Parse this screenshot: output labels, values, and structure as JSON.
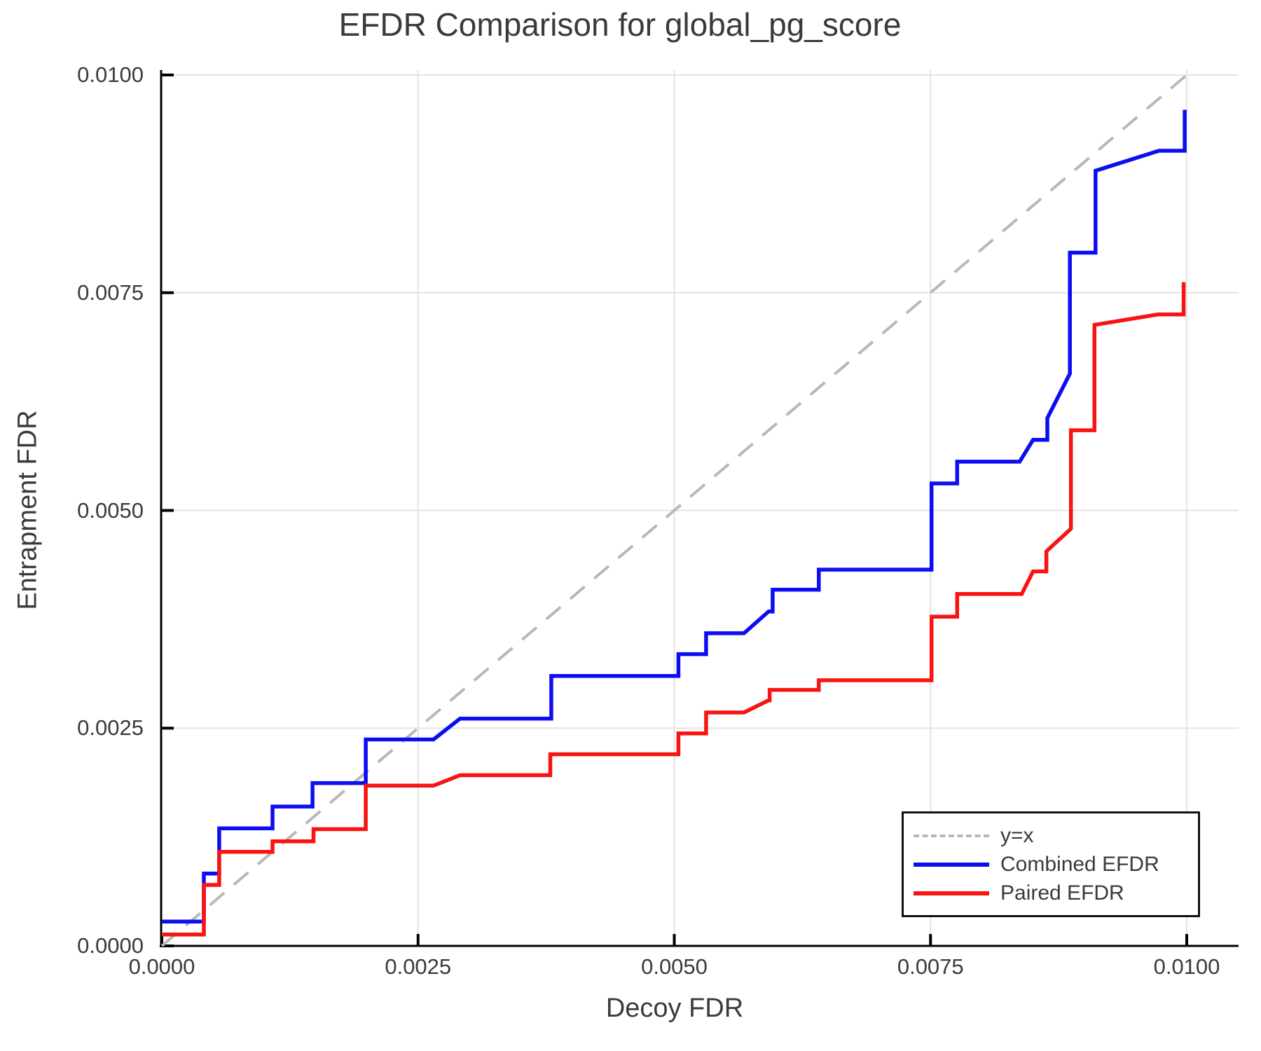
{
  "title": "EFDR Comparison for global_pg_score",
  "axes": {
    "xlabel": "Decoy FDR",
    "ylabel": "Entrapment FDR",
    "xtick_labels": [
      "0.0000",
      "0.0025",
      "0.0050",
      "0.0075",
      "0.0100"
    ],
    "ytick_labels": [
      "0.0000",
      "0.0025",
      "0.0050",
      "0.0075",
      "0.0100"
    ],
    "xtick_values": [
      0,
      0.0025,
      0.005,
      0.0075,
      0.01
    ],
    "ytick_values": [
      0,
      0.0025,
      0.005,
      0.0075,
      0.01
    ]
  },
  "legend": {
    "items": [
      {
        "label": "y=x",
        "color": "#b8b8b8",
        "style": "dashed"
      },
      {
        "label": "Combined EFDR",
        "color": "#0d0df2",
        "style": "solid"
      },
      {
        "label": "Paired EFDR",
        "color": "#f81412",
        "style": "solid"
      }
    ],
    "position": "lower right"
  },
  "chart_data": {
    "type": "line",
    "title": "EFDR Comparison for global_pg_score",
    "xlabel": "Decoy FDR",
    "ylabel": "Entrapment FDR",
    "xlim": [
      0,
      0.0105
    ],
    "ylim": [
      0,
      0.01006
    ],
    "grid": true,
    "legend_position": "lower right",
    "series": [
      {
        "name": "y=x",
        "style": "dashed",
        "color": "#b8b8b8",
        "points": [
          [
            0,
            0
          ],
          [
            0.01,
            0.01
          ]
        ]
      },
      {
        "name": "Combined EFDR",
        "style": "solid",
        "color": "#0d0df2",
        "points": [
          [
            0.0,
            0.00028
          ],
          [
            0.00041,
            0.00028
          ],
          [
            0.00041,
            0.00083
          ],
          [
            0.00056,
            0.00083
          ],
          [
            0.00056,
            0.00135
          ],
          [
            0.00108,
            0.00135
          ],
          [
            0.00108,
            0.0016
          ],
          [
            0.00147,
            0.0016
          ],
          [
            0.00147,
            0.00187
          ],
          [
            0.00199,
            0.00187
          ],
          [
            0.00199,
            0.00237
          ],
          [
            0.00265,
            0.00237
          ],
          [
            0.00291,
            0.00261
          ],
          [
            0.0038,
            0.00261
          ],
          [
            0.0038,
            0.0031
          ],
          [
            0.00504,
            0.0031
          ],
          [
            0.00504,
            0.00335
          ],
          [
            0.00531,
            0.00335
          ],
          [
            0.00531,
            0.00359
          ],
          [
            0.00568,
            0.00359
          ],
          [
            0.00592,
            0.00384
          ],
          [
            0.00596,
            0.00384
          ],
          [
            0.00596,
            0.00409
          ],
          [
            0.00641,
            0.00409
          ],
          [
            0.00641,
            0.00432
          ],
          [
            0.00751,
            0.00432
          ],
          [
            0.00751,
            0.00531
          ],
          [
            0.00776,
            0.00531
          ],
          [
            0.00776,
            0.00556
          ],
          [
            0.00837,
            0.00556
          ],
          [
            0.0085,
            0.00581
          ],
          [
            0.00864,
            0.00581
          ],
          [
            0.00864,
            0.00606
          ],
          [
            0.00886,
            0.00657
          ],
          [
            0.00886,
            0.00796
          ],
          [
            0.00911,
            0.00796
          ],
          [
            0.00911,
            0.0089
          ],
          [
            0.00973,
            0.00913
          ],
          [
            0.00998,
            0.00913
          ],
          [
            0.00998,
            0.0096
          ]
        ]
      },
      {
        "name": "Paired EFDR",
        "style": "solid",
        "color": "#f81412",
        "points": [
          [
            0.0,
            0.00013
          ],
          [
            0.00041,
            0.00013
          ],
          [
            0.00041,
            0.0007
          ],
          [
            0.00056,
            0.0007
          ],
          [
            0.00056,
            0.00108
          ],
          [
            0.00108,
            0.00108
          ],
          [
            0.00108,
            0.0012
          ],
          [
            0.00148,
            0.0012
          ],
          [
            0.00148,
            0.00134
          ],
          [
            0.00199,
            0.00134
          ],
          [
            0.00199,
            0.00184
          ],
          [
            0.00265,
            0.00184
          ],
          [
            0.00291,
            0.00196
          ],
          [
            0.00379,
            0.00196
          ],
          [
            0.00379,
            0.0022
          ],
          [
            0.00504,
            0.0022
          ],
          [
            0.00504,
            0.00244
          ],
          [
            0.00531,
            0.00244
          ],
          [
            0.00531,
            0.00268
          ],
          [
            0.00568,
            0.00268
          ],
          [
            0.00592,
            0.00282
          ],
          [
            0.00593,
            0.00282
          ],
          [
            0.00593,
            0.00294
          ],
          [
            0.00641,
            0.00294
          ],
          [
            0.00641,
            0.00305
          ],
          [
            0.00751,
            0.00305
          ],
          [
            0.00751,
            0.00378
          ],
          [
            0.00776,
            0.00378
          ],
          [
            0.00776,
            0.00404
          ],
          [
            0.00839,
            0.00404
          ],
          [
            0.0085,
            0.0043
          ],
          [
            0.00863,
            0.0043
          ],
          [
            0.00863,
            0.00453
          ],
          [
            0.00887,
            0.00479
          ],
          [
            0.00887,
            0.00592
          ],
          [
            0.0091,
            0.00592
          ],
          [
            0.0091,
            0.00713
          ],
          [
            0.00972,
            0.00725
          ],
          [
            0.00997,
            0.00725
          ],
          [
            0.00997,
            0.00762
          ]
        ]
      }
    ]
  },
  "style": {
    "grid_color": "#e4e4e4",
    "spine_color": "#000000",
    "text_color": "#3a3a3a",
    "background": "#ffffff"
  }
}
